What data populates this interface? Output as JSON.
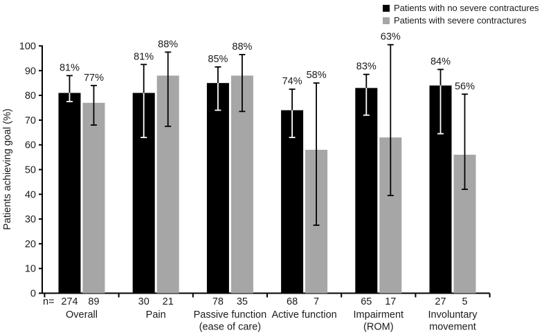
{
  "legend": {
    "items": [
      {
        "label": "Patients with no severe contractures",
        "color": "#000000"
      },
      {
        "label": "Patients with severe contractures",
        "color": "#a6a6a6"
      }
    ]
  },
  "chart_data": {
    "type": "bar",
    "title": "",
    "xlabel": "",
    "ylabel": "Patients achieving goal (%)",
    "ylim": [
      0,
      100
    ],
    "ytick_step": 10,
    "yticks": [
      0,
      10,
      20,
      30,
      40,
      50,
      60,
      70,
      80,
      90,
      100
    ],
    "grid": false,
    "legend_position": "top-right",
    "n_row_prefix": "n=",
    "categories": [
      "Overall",
      "Pain",
      "Passive function (ease of care)",
      "Active function",
      "Impairment (ROM)",
      "Involuntary movement"
    ],
    "category_label_lines": [
      [
        "Overall"
      ],
      [
        "Pain"
      ],
      [
        "Passive function",
        "(ease of care)"
      ],
      [
        "Active function"
      ],
      [
        "Impairment",
        "(ROM)"
      ],
      [
        "Involuntary",
        "movement"
      ]
    ],
    "series": [
      {
        "name": "Patients with no severe contractures",
        "color": "#000000",
        "values": [
          81,
          81,
          85,
          74,
          83,
          84
        ],
        "labels": [
          "81%",
          "81%",
          "85%",
          "74%",
          "83%",
          "84%"
        ],
        "err_low": [
          77.5,
          63,
          74,
          63,
          72,
          64.5
        ],
        "err_high": [
          88,
          92.5,
          91.5,
          82.5,
          88.5,
          90.5
        ],
        "n": [
          274,
          30,
          78,
          68,
          65,
          27
        ]
      },
      {
        "name": "Patients with severe contractures",
        "color": "#a6a6a6",
        "values": [
          77,
          88,
          88,
          58,
          63,
          56
        ],
        "labels": [
          "77%",
          "88%",
          "88%",
          "58%",
          "63%",
          "56%"
        ],
        "err_low": [
          68,
          67.5,
          73.5,
          27.5,
          39.5,
          42
        ],
        "err_high": [
          84,
          97.5,
          96.5,
          85,
          100.5,
          80.5
        ],
        "n": [
          89,
          21,
          35,
          7,
          17,
          5
        ]
      }
    ]
  }
}
